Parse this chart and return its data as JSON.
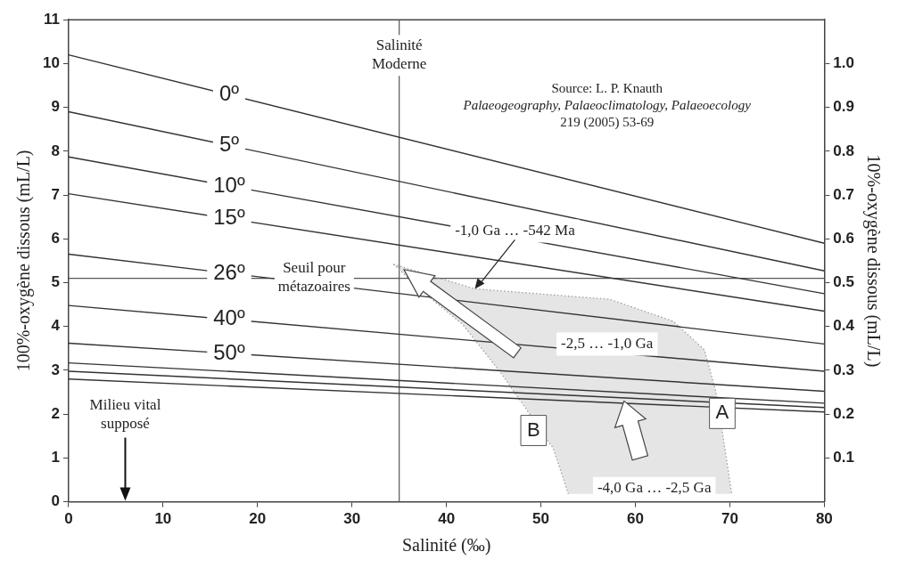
{
  "chart_data": {
    "type": "line",
    "xlabel": "Salinité (‰)",
    "ylabel": "100%-oxygène dissous (mL/L)",
    "y2label": "10%-oxygène dissous (mL/L)",
    "xlim": [
      0,
      80
    ],
    "xticks": [
      0,
      10,
      20,
      30,
      40,
      50,
      60,
      70,
      80
    ],
    "ylim": [
      0,
      11
    ],
    "yticks": [
      0,
      1,
      2,
      3,
      4,
      5,
      6,
      7,
      8,
      9,
      10,
      11
    ],
    "y2lim": [
      0,
      1.1
    ],
    "y2ticks": [
      0.1,
      0.2,
      0.3,
      0.4,
      0.5,
      0.6,
      0.7,
      0.8,
      0.9,
      {
        "value": 1,
        "label": "1.0"
      }
    ],
    "legend": false,
    "series": [
      {
        "name": "0º",
        "color": "#333333",
        "x": [
          0,
          80
        ],
        "values": [
          10.2,
          5.9
        ]
      },
      {
        "name": "5º",
        "color": "#333333",
        "x": [
          0,
          80
        ],
        "values": [
          8.9,
          5.27
        ]
      },
      {
        "name": "10º",
        "color": "#333333",
        "x": [
          0,
          80
        ],
        "values": [
          7.87,
          4.75
        ]
      },
      {
        "name": "15º",
        "color": "#333333",
        "x": [
          0,
          80
        ],
        "values": [
          7.03,
          4.35
        ]
      },
      {
        "name": "26º",
        "color": "#333333",
        "x": [
          0,
          80
        ],
        "values": [
          5.65,
          3.6
        ]
      },
      {
        "name": "40º",
        "color": "#333333",
        "x": [
          0,
          80
        ],
        "values": [
          4.48,
          2.98
        ]
      },
      {
        "name": "50º",
        "color": "#333333",
        "x": [
          0,
          80
        ],
        "values": [
          3.62,
          2.52
        ]
      },
      {
        "color": "#333333",
        "x": [
          0,
          80
        ],
        "values": [
          3.17,
          2.25
        ]
      },
      {
        "color": "#333333",
        "x": [
          0,
          80
        ],
        "values": [
          2.98,
          2.15
        ]
      },
      {
        "color": "#333333",
        "x": [
          0,
          80
        ],
        "values": [
          2.8,
          2.05
        ]
      },
      {
        "name": "B",
        "color": "#999999",
        "line_style": "dotted",
        "x": [
          34.4,
          37.9,
          41.7,
          45.8,
          48.4,
          51.3,
          52.9
        ],
        "values": [
          5.42,
          4.72,
          4.05,
          2.93,
          2.13,
          1.22,
          0.18
        ]
      },
      {
        "name": "A",
        "color": "#999999",
        "line_style": "dotted",
        "x": [
          34.4,
          43,
          57.3,
          64,
          67.3,
          68.5,
          69.2,
          70.2
        ],
        "values": [
          5.42,
          4.86,
          4.62,
          4.12,
          3.47,
          2.53,
          1.61,
          0.18
        ]
      }
    ],
    "ref_lines": [
      {
        "axis": "x",
        "value": 35,
        "label": "Salinité Moderne"
      },
      {
        "axis": "y",
        "value": 5.1,
        "label": "Seuil pour métazoaires"
      }
    ],
    "annotations": [
      "Milieu vital supposé",
      {
        "text": "-1,0 Ga … -542 Ma",
        "x": 43,
        "y": 4.86
      },
      "-2,5 … -1,0 Ga",
      "-4,0 Ga … -2,5 Ga",
      "Source: L. P. Knauth",
      "Palaeogeography, Palaeoclimatology, Palaeoecology",
      "219 (2005) 53-69"
    ]
  }
}
